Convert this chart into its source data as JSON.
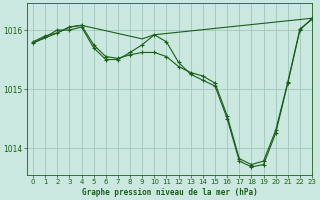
{
  "background_color": "#cbe8e0",
  "plot_bg_color": "#cbe8e0",
  "grid_color": "#9dbfb5",
  "line_color": "#1a5e1a",
  "title": "Graphe pression niveau de la mer (hPa)",
  "xlim": [
    -0.5,
    23
  ],
  "ylim": [
    1013.55,
    1016.45
  ],
  "yticks": [
    1014,
    1015,
    1016
  ],
  "xticks": [
    0,
    1,
    2,
    3,
    4,
    5,
    6,
    7,
    8,
    9,
    10,
    11,
    12,
    13,
    14,
    15,
    16,
    17,
    18,
    19,
    20,
    21,
    22,
    23
  ],
  "line1": {
    "x": [
      0,
      1,
      2,
      3,
      4,
      5,
      6,
      7,
      8,
      9,
      10,
      11,
      12,
      13,
      14,
      15,
      16,
      17,
      18,
      19,
      20,
      21,
      22,
      23
    ],
    "y": [
      1015.8,
      1015.9,
      1015.95,
      1016.05,
      1016.08,
      1015.75,
      1015.55,
      1015.52,
      1015.58,
      1015.62,
      1015.62,
      1015.55,
      1015.38,
      1015.28,
      1015.22,
      1015.1,
      1014.55,
      1013.82,
      1013.72,
      1013.78,
      1014.3,
      1015.12,
      1016.02,
      1016.18
    ]
  },
  "line2": {
    "x": [
      0,
      1,
      2,
      3,
      4,
      5,
      6,
      7,
      8,
      9,
      10,
      11,
      12,
      13,
      14,
      15,
      16,
      17,
      18,
      19,
      20,
      21,
      22,
      23
    ],
    "y": [
      1015.78,
      1015.88,
      1016.0,
      1016.0,
      1016.05,
      1015.7,
      1015.5,
      1015.5,
      1015.62,
      1015.75,
      1015.92,
      1015.8,
      1015.45,
      1015.25,
      1015.15,
      1015.05,
      1014.5,
      1013.78,
      1013.68,
      1013.72,
      1014.25,
      1015.1,
      1016.0,
      1016.2
    ]
  },
  "line3": {
    "x": [
      0,
      2,
      3,
      4,
      9,
      10,
      23
    ],
    "y": [
      1015.78,
      1015.95,
      1016.05,
      1016.08,
      1015.85,
      1015.92,
      1016.2
    ]
  }
}
